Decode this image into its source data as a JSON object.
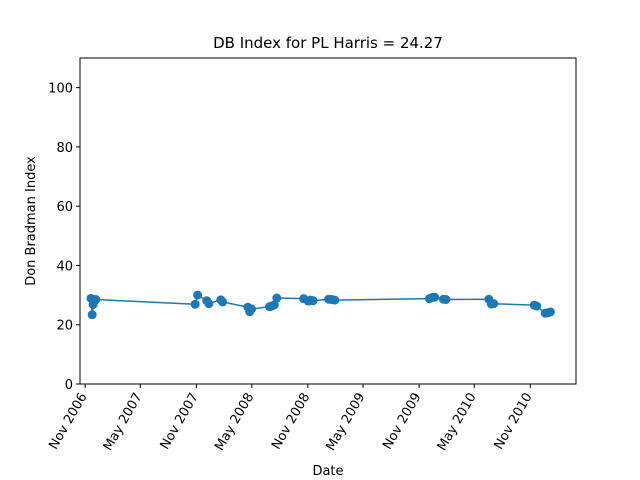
{
  "chart_data": {
    "type": "line",
    "title": "DB Index for PL Harris = 24.27",
    "xlabel": "Date",
    "ylabel": "Don Bradman Index",
    "ylim": [
      0,
      110
    ],
    "yticks": [
      0,
      20,
      40,
      60,
      80,
      100
    ],
    "xlim": [
      "2006-10-15",
      "2011-03-31"
    ],
    "xticks": [
      {
        "date": "2006-11-01",
        "label": "Nov 2006"
      },
      {
        "date": "2007-05-01",
        "label": "May 2007"
      },
      {
        "date": "2007-11-01",
        "label": "Nov 2007"
      },
      {
        "date": "2008-05-01",
        "label": "May 2008"
      },
      {
        "date": "2008-11-01",
        "label": "Nov 2008"
      },
      {
        "date": "2009-05-01",
        "label": "May 2009"
      },
      {
        "date": "2009-11-01",
        "label": "Nov 2009"
      },
      {
        "date": "2010-05-01",
        "label": "May 2010"
      },
      {
        "date": "2010-11-01",
        "label": "Nov 2010"
      }
    ],
    "color": "#1f77b4",
    "grid": false,
    "points": [
      {
        "x": "2006-11-20",
        "y": 28.9
      },
      {
        "x": "2006-11-24",
        "y": 23.4
      },
      {
        "x": "2006-11-27",
        "y": 26.8
      },
      {
        "x": "2006-11-30",
        "y": 27.8
      },
      {
        "x": "2006-12-03",
        "y": 28.3
      },
      {
        "x": "2006-12-06",
        "y": 28.5
      },
      {
        "x": "2007-10-28",
        "y": 26.9
      },
      {
        "x": "2007-11-05",
        "y": 30.0
      },
      {
        "x": "2007-12-05",
        "y": 28.1
      },
      {
        "x": "2007-12-12",
        "y": 27.1
      },
      {
        "x": "2008-01-20",
        "y": 28.4
      },
      {
        "x": "2008-01-26",
        "y": 27.7
      },
      {
        "x": "2008-04-18",
        "y": 25.9
      },
      {
        "x": "2008-04-24",
        "y": 24.4
      },
      {
        "x": "2008-04-30",
        "y": 25.3
      },
      {
        "x": "2008-06-28",
        "y": 26.1
      },
      {
        "x": "2008-07-06",
        "y": 26.3
      },
      {
        "x": "2008-07-14",
        "y": 26.7
      },
      {
        "x": "2008-07-22",
        "y": 29.0
      },
      {
        "x": "2008-10-18",
        "y": 28.8
      },
      {
        "x": "2008-11-02",
        "y": 28.0
      },
      {
        "x": "2008-11-10",
        "y": 28.3
      },
      {
        "x": "2008-11-18",
        "y": 28.1
      },
      {
        "x": "2009-01-08",
        "y": 28.6
      },
      {
        "x": "2009-01-18",
        "y": 28.5
      },
      {
        "x": "2009-01-28",
        "y": 28.3
      },
      {
        "x": "2009-12-05",
        "y": 28.8
      },
      {
        "x": "2009-12-14",
        "y": 29.2
      },
      {
        "x": "2009-12-22",
        "y": 29.3
      },
      {
        "x": "2010-01-20",
        "y": 28.6
      },
      {
        "x": "2010-01-28",
        "y": 28.5
      },
      {
        "x": "2010-06-18",
        "y": 28.6
      },
      {
        "x": "2010-06-26",
        "y": 27.0
      },
      {
        "x": "2010-07-04",
        "y": 27.1
      },
      {
        "x": "2010-11-14",
        "y": 26.6
      },
      {
        "x": "2010-11-22",
        "y": 26.3
      },
      {
        "x": "2010-12-20",
        "y": 23.9
      },
      {
        "x": "2010-12-28",
        "y": 24.0
      },
      {
        "x": "2011-01-06",
        "y": 24.3
      }
    ]
  }
}
